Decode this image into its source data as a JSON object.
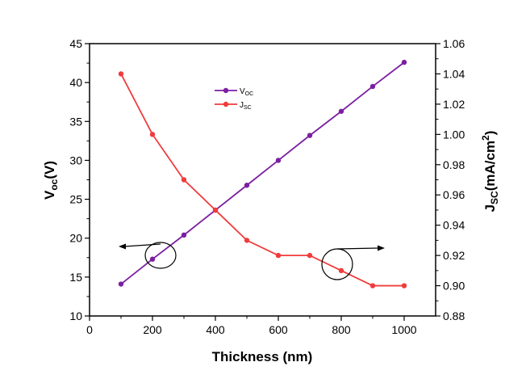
{
  "chart_data": {
    "type": "line",
    "xlabel": "Thickness (nm)",
    "ylabel_left_main": "V",
    "ylabel_left_sub": "oc",
    "ylabel_left_unit": "(V)",
    "ylabel_right_main": "J",
    "ylabel_right_sub": "SC",
    "ylabel_right_unit": "(mA/cm",
    "ylabel_right_sup": "2",
    "ylabel_right_close": ")",
    "xlim": [
      0,
      1100
    ],
    "ylim_left": [
      10,
      45
    ],
    "ylim_right": [
      0.88,
      1.06
    ],
    "x_ticks": [
      "0",
      "200",
      "400",
      "600",
      "800",
      "1000"
    ],
    "y_left_ticks": [
      "10",
      "15",
      "20",
      "25",
      "30",
      "35",
      "40",
      "45"
    ],
    "y_right_ticks": [
      "0.88",
      "0.90",
      "0.92",
      "0.94",
      "0.96",
      "0.98",
      "1.00",
      "1.02",
      "1.04",
      "1.06"
    ],
    "legend_position": "top-center",
    "series": [
      {
        "name_main": "V",
        "name_sub": "OC",
        "axis": "left",
        "color": "#7B1FA2",
        "x": [
          100,
          200,
          300,
          400,
          500,
          600,
          700,
          800,
          900,
          1000
        ],
        "values": [
          14.1,
          17.3,
          20.4,
          23.6,
          26.8,
          30.0,
          33.2,
          36.3,
          39.5,
          42.6
        ]
      },
      {
        "name_main": "J",
        "name_sub": "SC",
        "axis": "right",
        "color": "#F03C3C",
        "x": [
          100,
          200,
          300,
          400,
          500,
          600,
          700,
          800,
          900,
          1000
        ],
        "values": [
          1.04,
          1.0,
          0.97,
          0.95,
          0.93,
          0.92,
          0.92,
          0.91,
          0.9,
          0.9
        ]
      }
    ]
  }
}
